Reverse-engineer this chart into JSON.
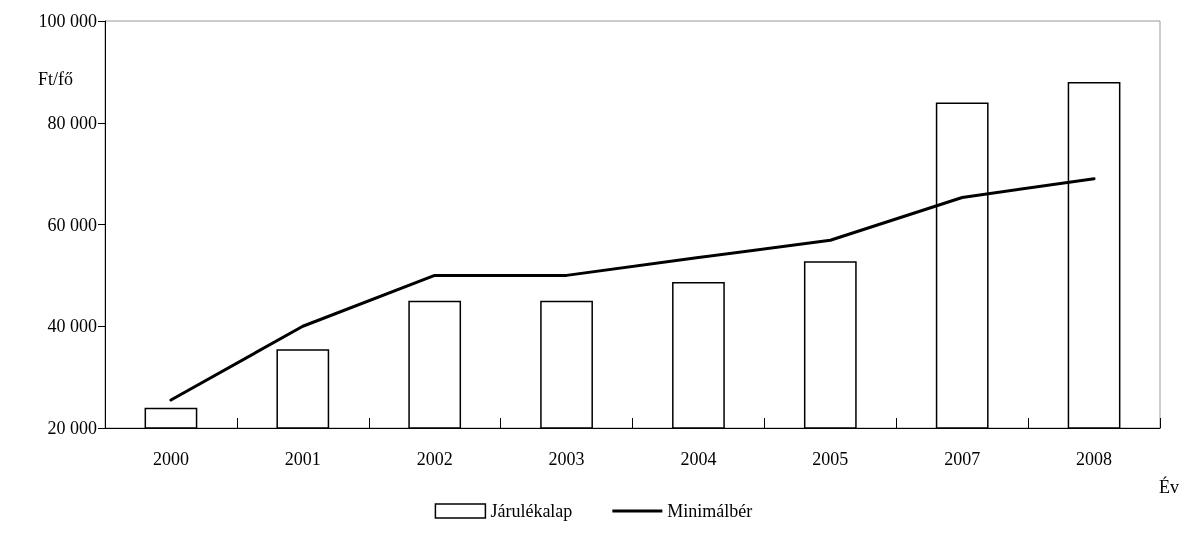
{
  "chart_data": {
    "type": "bar",
    "xlabel": "Év",
    "ylabel": "Ft/fő",
    "categories": [
      "2000",
      "2001",
      "2002",
      "2003",
      "2004",
      "2005",
      "2007",
      "2008"
    ],
    "series": [
      {
        "name": "Járulékalap",
        "color": "#ffffff",
        "values": [
          24000,
          35500,
          45000,
          45000,
          48700,
          52800,
          84000,
          88000
        ]
      },
      {
        "name": "Minimálbér",
        "type": "line",
        "color": "#000000",
        "values": [
          25500,
          40000,
          50000,
          50000,
          53500,
          56900,
          65300,
          69000
        ]
      }
    ],
    "ylim": [
      20000,
      100000
    ],
    "yticks": [
      {
        "value": 20000,
        "label": "20 000"
      },
      {
        "value": 40000,
        "label": "40 000"
      },
      {
        "value": 60000,
        "label": "60 000"
      },
      {
        "value": 80000,
        "label": "80 000"
      },
      {
        "value": 100000,
        "label": "100 000"
      }
    ],
    "grid": false,
    "legend": "bottom",
    "marker": "none",
    "line_style": "solid"
  }
}
